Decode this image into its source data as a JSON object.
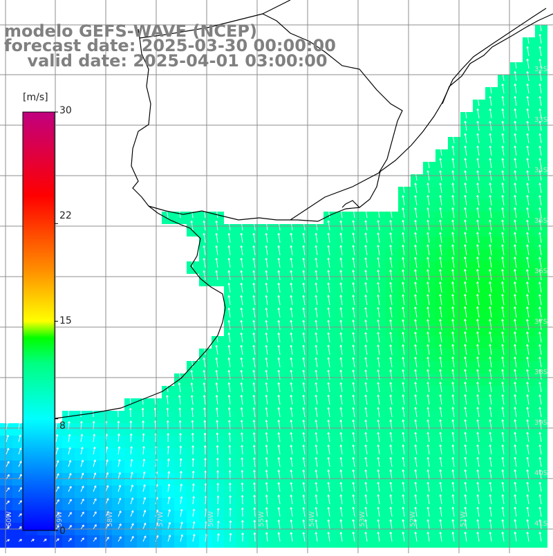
{
  "title": {
    "line1": "modelo GEFS-WAVE (NCEP)",
    "line2": "forecast date: 2025-03-30 00:00:00",
    "line3": "    valid date: 2025-04-01 03:00:00"
  },
  "colorbar": {
    "unit": "[m/s]",
    "ticks": [
      "30",
      "22",
      "15",
      "8",
      "0"
    ],
    "tick_values": [
      30,
      22,
      15,
      8,
      0
    ],
    "min": 0,
    "max": 30,
    "colors": [
      "#0000ff",
      "#0090ff",
      "#00ffff",
      "#00ff00",
      "#ffff00",
      "#ff8000",
      "#ff0000",
      "#c00080"
    ]
  },
  "map": {
    "lat_labels": [
      "32S",
      "33S",
      "34S",
      "35S",
      "36S",
      "37S",
      "38S",
      "39S",
      "40S",
      "41S"
    ],
    "lon_labels": [
      "60W",
      "59W",
      "58W",
      "57W",
      "56W",
      "55W",
      "54W",
      "53W",
      "52W",
      "51W"
    ],
    "ocean_field": "wind speed with direction arrows",
    "land_color": "#ffffff",
    "coast_color": "#000000"
  }
}
